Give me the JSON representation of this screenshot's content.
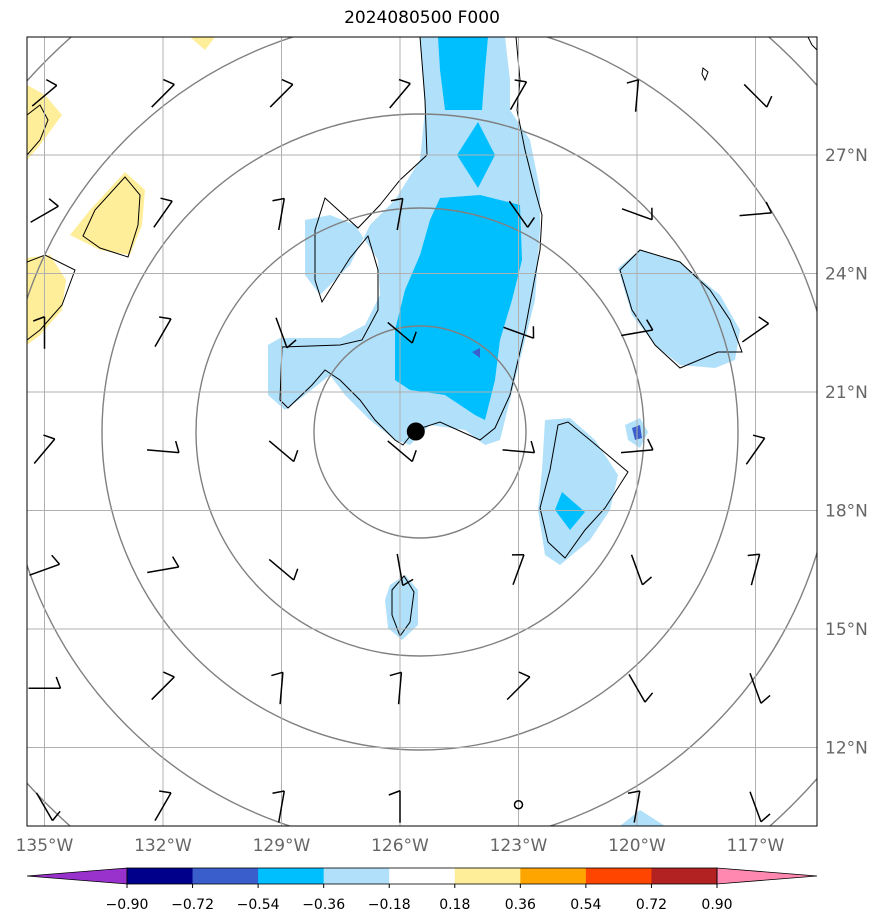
{
  "title": "2024080500 F000",
  "lat_ticks": [
    {
      "value": 27,
      "label": "27°N"
    },
    {
      "value": 24,
      "label": "24°N"
    },
    {
      "value": 21,
      "label": "21°N"
    },
    {
      "value": 18,
      "label": "18°N"
    },
    {
      "value": 15,
      "label": "15°N"
    },
    {
      "value": 12,
      "label": "12°N"
    }
  ],
  "lon_ticks": [
    {
      "value": -135,
      "label": "135°W"
    },
    {
      "value": -132,
      "label": "132°W"
    },
    {
      "value": -129,
      "label": "129°W"
    },
    {
      "value": -126,
      "label": "126°W"
    },
    {
      "value": -123,
      "label": "123°W"
    },
    {
      "value": -120,
      "label": "120°W"
    },
    {
      "value": -117,
      "label": "117°W"
    }
  ],
  "colorbar": {
    "colors": [
      "#9932cc",
      "#00008b",
      "#3a5fcd",
      "#00bfff",
      "#b0e0fa",
      "#ffffff",
      "#ffee99",
      "#ffa500",
      "#ff4500",
      "#b22222",
      "#ff88b0"
    ],
    "labels": [
      "−0.90",
      "−0.72",
      "−0.54",
      "−0.36",
      "−0.18",
      "0.18",
      "0.36",
      "0.54",
      "0.72",
      "0.90"
    ]
  },
  "storm_center": {
    "lon": -125.6,
    "lat": 20.0
  }
}
